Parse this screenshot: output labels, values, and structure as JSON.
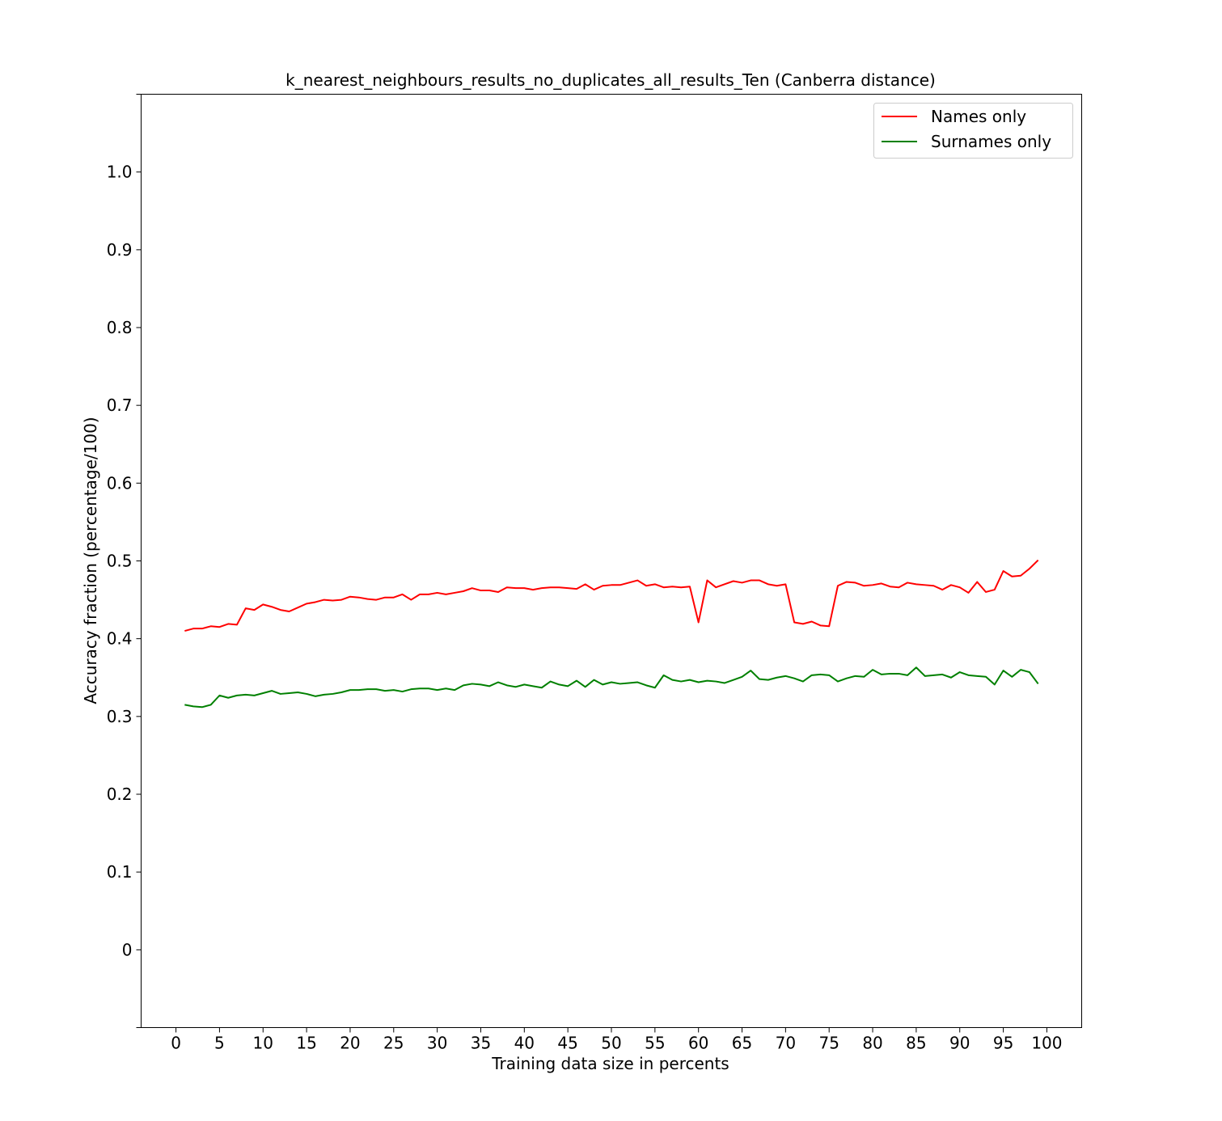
{
  "chart_data": {
    "type": "line",
    "title": "k_nearest_neighbours_results_no_duplicates_all_results_Ten (Canberra distance)",
    "xlabel": "Training data size in percents",
    "ylabel": "Accuracy fraction (percentage/100)",
    "xlim": [
      -4,
      104
    ],
    "ylim": [
      -0.1,
      1.1
    ],
    "xticks": [
      0,
      5,
      10,
      15,
      20,
      25,
      30,
      35,
      40,
      45,
      50,
      55,
      60,
      65,
      70,
      75,
      80,
      85,
      90,
      95,
      100
    ],
    "xtick_labels": [
      "0",
      "5",
      "10",
      "15",
      "20",
      "25",
      "30",
      "35",
      "40",
      "45",
      "50",
      "55",
      "60",
      "65",
      "70",
      "75",
      "80",
      "85",
      "90",
      "95",
      "100"
    ],
    "yticks": [
      0,
      0.1,
      0.2,
      0.3,
      0.4,
      0.5,
      0.6,
      0.7,
      0.8,
      0.9,
      1.0
    ],
    "ytick_labels": [
      "0",
      "0.1",
      "0.2",
      "0.3",
      "0.4",
      "0.5",
      "0.6",
      "0.7",
      "0.8",
      "0.9",
      "1.0"
    ],
    "legend_position": "top-right",
    "series": [
      {
        "name": "Names only",
        "color": "#ff0000",
        "values": [
          0.41,
          0.413,
          0.413,
          0.416,
          0.415,
          0.419,
          0.418,
          0.439,
          0.437,
          0.444,
          0.441,
          0.437,
          0.435,
          0.44,
          0.445,
          0.447,
          0.45,
          0.449,
          0.45,
          0.454,
          0.453,
          0.451,
          0.45,
          0.453,
          0.453,
          0.457,
          0.45,
          0.457,
          0.457,
          0.459,
          0.457,
          0.459,
          0.461,
          0.465,
          0.462,
          0.462,
          0.46,
          0.466,
          0.465,
          0.465,
          0.463,
          0.465,
          0.466,
          0.466,
          0.465,
          0.464,
          0.47,
          0.463,
          0.468,
          0.469,
          0.469,
          0.472,
          0.475,
          0.468,
          0.47,
          0.466,
          0.467,
          0.466,
          0.467,
          0.421,
          0.475,
          0.466,
          0.47,
          0.474,
          0.472,
          0.475,
          0.475,
          0.47,
          0.468,
          0.47,
          0.421,
          0.419,
          0.422,
          0.417,
          0.416,
          0.468,
          0.473,
          0.472,
          0.468,
          0.469,
          0.471,
          0.467,
          0.466,
          0.472,
          0.47,
          0.469,
          0.468,
          0.463,
          0.469,
          0.466,
          0.459,
          0.473,
          0.46,
          0.463,
          0.487,
          0.48,
          0.481,
          0.49,
          0.501
        ]
      },
      {
        "name": "Surnames only",
        "color": "#008000",
        "values": [
          0.315,
          0.313,
          0.312,
          0.315,
          0.327,
          0.324,
          0.327,
          0.328,
          0.327,
          0.33,
          0.333,
          0.329,
          0.33,
          0.331,
          0.329,
          0.326,
          0.328,
          0.329,
          0.331,
          0.334,
          0.334,
          0.335,
          0.335,
          0.333,
          0.334,
          0.332,
          0.335,
          0.336,
          0.336,
          0.334,
          0.336,
          0.334,
          0.34,
          0.342,
          0.341,
          0.339,
          0.344,
          0.34,
          0.338,
          0.341,
          0.339,
          0.337,
          0.345,
          0.341,
          0.339,
          0.346,
          0.338,
          0.347,
          0.341,
          0.344,
          0.342,
          0.343,
          0.344,
          0.34,
          0.337,
          0.353,
          0.347,
          0.345,
          0.347,
          0.344,
          0.346,
          0.345,
          0.343,
          0.347,
          0.351,
          0.359,
          0.348,
          0.347,
          0.35,
          0.352,
          0.349,
          0.345,
          0.353,
          0.354,
          0.353,
          0.345,
          0.349,
          0.352,
          0.351,
          0.36,
          0.354,
          0.355,
          0.355,
          0.353,
          0.363,
          0.352,
          0.353,
          0.354,
          0.35,
          0.357,
          0.353,
          0.352,
          0.351,
          0.341,
          0.359,
          0.351,
          0.36,
          0.357,
          0.342
        ]
      }
    ]
  }
}
